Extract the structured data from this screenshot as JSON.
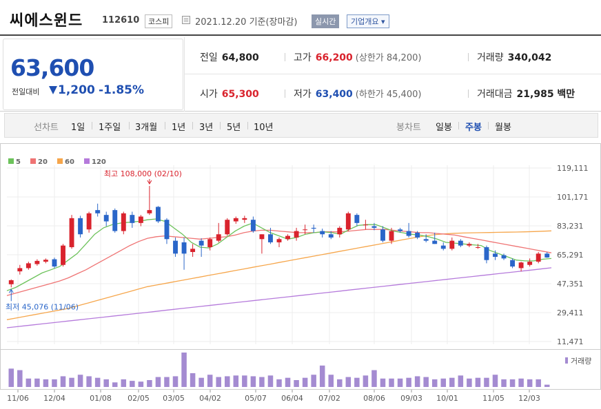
{
  "header": {
    "name": "씨에스윈드",
    "code": "112610",
    "market": "코스피",
    "date": "2021.12.20 기준(장마감)",
    "realtime": "실시간",
    "overview": "기업개요 ▾"
  },
  "summary": {
    "price": "63,600",
    "change_label": "전일대비",
    "change": "1,200",
    "change_pct": "-1.85%",
    "prev_label": "전일",
    "prev": "64,800",
    "high_label": "고가",
    "high": "66,200",
    "upper_limit": "(상한가 84,200)",
    "volume_label": "거래량",
    "volume": "340,042",
    "open_label": "시가",
    "open": "65,300",
    "low_label": "저가",
    "low": "63,400",
    "lower_limit": "(하한가 45,400)",
    "amount_label": "거래대금",
    "amount": "21,985 백만"
  },
  "period_bar": {
    "line_label": "선차트",
    "line_items": [
      "1일",
      "1주일",
      "3개월",
      "1년",
      "3년",
      "5년",
      "10년"
    ],
    "candle_label": "봉차트",
    "candle_items": [
      "일봉",
      "주봉",
      "월봉"
    ],
    "active": "주봉"
  },
  "chart_data": {
    "type": "candlestick",
    "legend": [
      "5",
      "20",
      "60",
      "120"
    ],
    "ma_colors": {
      "5": "#6cc25a",
      "20": "#ef7373",
      "60": "#f6a64b",
      "120": "#b57adb"
    },
    "up_color": "#d9232d",
    "down_color": "#2a66c9",
    "y_ticks": [
      "119,111",
      "101,171",
      "83,231",
      "65,291",
      "47,351",
      "29,411",
      "11,471"
    ],
    "ylim": [
      11471,
      119111
    ],
    "x_ticks": [
      "11/06",
      "12/04",
      "01/08",
      "02/05",
      "03/05",
      "04/02",
      "05/07",
      "06/04",
      "07/02",
      "08/06",
      "09/03",
      "10/01",
      "11/05",
      "12/03"
    ],
    "max_label": "최고 108,000 (02/10)",
    "min_label": "최저 45,076 (11/06)",
    "volume_label": "거래량",
    "candles": [
      {
        "o": 47000,
        "h": 50000,
        "l": 45076,
        "c": 49500
      },
      {
        "o": 55000,
        "h": 59000,
        "l": 53000,
        "c": 57000
      },
      {
        "o": 57000,
        "h": 61000,
        "l": 56000,
        "c": 60000
      },
      {
        "o": 59500,
        "h": 62500,
        "l": 58500,
        "c": 61500
      },
      {
        "o": 61000,
        "h": 63000,
        "l": 60000,
        "c": 62200
      },
      {
        "o": 62500,
        "h": 63500,
        "l": 57000,
        "c": 58000
      },
      {
        "o": 59000,
        "h": 72000,
        "l": 58000,
        "c": 71000
      },
      {
        "o": 70000,
        "h": 90000,
        "l": 69000,
        "c": 88000
      },
      {
        "o": 88000,
        "h": 89500,
        "l": 76000,
        "c": 78000
      },
      {
        "o": 81000,
        "h": 92000,
        "l": 79000,
        "c": 91000
      },
      {
        "o": 93000,
        "h": 97000,
        "l": 89000,
        "c": 91000
      },
      {
        "o": 90000,
        "h": 92000,
        "l": 83000,
        "c": 86000
      },
      {
        "o": 93000,
        "h": 94000,
        "l": 79000,
        "c": 80000
      },
      {
        "o": 80000,
        "h": 92000,
        "l": 78000,
        "c": 91000
      },
      {
        "o": 90000,
        "h": 92000,
        "l": 82000,
        "c": 85000
      },
      {
        "o": 85000,
        "h": 90000,
        "l": 83000,
        "c": 89000
      },
      {
        "o": 91000,
        "h": 108000,
        "l": 90000,
        "c": 93000
      },
      {
        "o": 95000,
        "h": 95500,
        "l": 85000,
        "c": 86000
      },
      {
        "o": 87000,
        "h": 88000,
        "l": 72000,
        "c": 75000
      },
      {
        "o": 74000,
        "h": 76000,
        "l": 64000,
        "c": 66000
      },
      {
        "o": 73000,
        "h": 76000,
        "l": 56000,
        "c": 66000
      },
      {
        "o": 67000,
        "h": 72000,
        "l": 64000,
        "c": 69000
      },
      {
        "o": 74000,
        "h": 75500,
        "l": 64000,
        "c": 71000
      },
      {
        "o": 70000,
        "h": 76000,
        "l": 68000,
        "c": 75000
      },
      {
        "o": 74000,
        "h": 85000,
        "l": 73000,
        "c": 78000
      },
      {
        "o": 78000,
        "h": 88000,
        "l": 77000,
        "c": 87000
      },
      {
        "o": 86000,
        "h": 89000,
        "l": 84500,
        "c": 88000
      },
      {
        "o": 87000,
        "h": 89500,
        "l": 85000,
        "c": 88000
      },
      {
        "o": 87000,
        "h": 89000,
        "l": 79000,
        "c": 80000
      },
      {
        "o": 75000,
        "h": 78000,
        "l": 66000,
        "c": 78000
      },
      {
        "o": 78000,
        "h": 82000,
        "l": 72000,
        "c": 73000
      },
      {
        "o": 73000,
        "h": 76000,
        "l": 70000,
        "c": 75000
      },
      {
        "o": 75000,
        "h": 78000,
        "l": 74000,
        "c": 77000
      },
      {
        "o": 76000,
        "h": 82000,
        "l": 74000,
        "c": 80000
      },
      {
        "o": 81000,
        "h": 84000,
        "l": 78000,
        "c": 81000
      },
      {
        "o": 82000,
        "h": 84000,
        "l": 79000,
        "c": 81500
      },
      {
        "o": 80000,
        "h": 81500,
        "l": 76000,
        "c": 78000
      },
      {
        "o": 78000,
        "h": 80000,
        "l": 75000,
        "c": 76000
      },
      {
        "o": 78000,
        "h": 83000,
        "l": 76000,
        "c": 82000
      },
      {
        "o": 81000,
        "h": 92000,
        "l": 80000,
        "c": 91000
      },
      {
        "o": 90000,
        "h": 91000,
        "l": 83000,
        "c": 85000
      },
      {
        "o": 84000,
        "h": 87000,
        "l": 81000,
        "c": 84000
      },
      {
        "o": 83000,
        "h": 85000,
        "l": 80500,
        "c": 82000
      },
      {
        "o": 81000,
        "h": 83000,
        "l": 73000,
        "c": 74000
      },
      {
        "o": 74000,
        "h": 82000,
        "l": 72000,
        "c": 80000
      },
      {
        "o": 81000,
        "h": 82000,
        "l": 79000,
        "c": 80000
      },
      {
        "o": 80000,
        "h": 85000,
        "l": 76000,
        "c": 77000
      },
      {
        "o": 79000,
        "h": 80000,
        "l": 75000,
        "c": 76000
      },
      {
        "o": 75000,
        "h": 78000,
        "l": 73000,
        "c": 74000
      },
      {
        "o": 74000,
        "h": 79000,
        "l": 72000,
        "c": 72000
      },
      {
        "o": 71000,
        "h": 73000,
        "l": 68000,
        "c": 69000
      },
      {
        "o": 69000,
        "h": 76000,
        "l": 68000,
        "c": 74000
      },
      {
        "o": 74000,
        "h": 75000,
        "l": 70000,
        "c": 71000
      },
      {
        "o": 71000,
        "h": 73000,
        "l": 70000,
        "c": 72000
      },
      {
        "o": 70000,
        "h": 72000,
        "l": 69000,
        "c": 70000
      },
      {
        "o": 70000,
        "h": 71000,
        "l": 60000,
        "c": 62000
      },
      {
        "o": 66000,
        "h": 68000,
        "l": 62000,
        "c": 64000
      },
      {
        "o": 65000,
        "h": 66000,
        "l": 62000,
        "c": 63000
      },
      {
        "o": 62000,
        "h": 63000,
        "l": 57000,
        "c": 58000
      },
      {
        "o": 57000,
        "h": 61000,
        "l": 55000,
        "c": 60500
      },
      {
        "o": 59000,
        "h": 63000,
        "l": 58000,
        "c": 61000
      },
      {
        "o": 61000,
        "h": 67000,
        "l": 60000,
        "c": 66000
      },
      {
        "o": 66000,
        "h": 67000,
        "l": 63400,
        "c": 63600
      }
    ],
    "ma5": [
      43000,
      45000,
      48000,
      51000,
      54000,
      56000,
      58000,
      62000,
      66000,
      72000,
      78000,
      82000,
      84000,
      85000,
      85500,
      86000,
      87000,
      87500,
      86000,
      82000,
      78000,
      73000,
      70000,
      69500,
      72000,
      76000,
      80000,
      83000,
      85000,
      82000,
      79000,
      77000,
      75000,
      76000,
      78000,
      79000,
      79500,
      79000,
      78000,
      81000,
      83500,
      84000,
      84000,
      82000,
      80000,
      79000,
      78000,
      77500,
      76500,
      75000,
      73000,
      72500,
      72000,
      71500,
      71000,
      68000,
      66000,
      64000,
      62000,
      61500,
      61500,
      62500,
      63000
    ],
    "ma20": [
      40000,
      41500,
      43000,
      44500,
      46000,
      47500,
      49000,
      51000,
      53500,
      56000,
      59000,
      62000,
      65000,
      68000,
      71000,
      73500,
      75500,
      76500,
      77000,
      76500,
      76000,
      75500,
      75000,
      75500,
      76000,
      76500,
      77500,
      79000,
      80000,
      80500,
      80500,
      80000,
      79500,
      79000,
      79000,
      79000,
      79500,
      79500,
      79500,
      80000,
      80500,
      81000,
      81000,
      81000,
      80500,
      80000,
      79500,
      79000,
      79000,
      78500,
      78000,
      77500,
      76500,
      75500,
      74500,
      73500,
      72500,
      71500,
      70500,
      69500,
      68500,
      67500,
      66500
    ],
    "ma60": [
      25000,
      26000,
      27000,
      28000,
      29000,
      30000,
      31000,
      32000,
      33500,
      35000,
      36500,
      38000,
      39500,
      41000,
      42500,
      44000,
      45500,
      46500,
      47500,
      48500,
      49500,
      50500,
      51500,
      52500,
      53500,
      54500,
      55500,
      56500,
      57500,
      58500,
      59500,
      60500,
      61500,
      62500,
      63500,
      64500,
      65500,
      66500,
      67500,
      68500,
      69500,
      70500,
      71500,
      72500,
      73500,
      74500,
      75500,
      76500,
      77300,
      77900,
      78300,
      78600,
      78800,
      78900,
      79000,
      79100,
      79200,
      79300,
      79400,
      79500,
      79700,
      79900,
      80100
    ],
    "ma120": [
      20000,
      20600,
      21200,
      21800,
      22400,
      23000,
      23600,
      24200,
      24800,
      25400,
      26000,
      26600,
      27200,
      27800,
      28400,
      29000,
      29600,
      30200,
      30800,
      31400,
      32000,
      32600,
      33200,
      33800,
      34400,
      35000,
      35600,
      36200,
      36800,
      37400,
      38000,
      38600,
      39200,
      39800,
      40400,
      41000,
      41600,
      42200,
      42800,
      43400,
      44000,
      44600,
      45200,
      45800,
      46400,
      47000,
      47600,
      48200,
      48800,
      49400,
      50000,
      50600,
      51200,
      51800,
      52400,
      53000,
      53600,
      54200,
      54800,
      55400,
      56000,
      56600,
      57200
    ],
    "volume": [
      24,
      22,
      11,
      11,
      10,
      10,
      14,
      12,
      16,
      14,
      12,
      10,
      6,
      10,
      8,
      7,
      9,
      13,
      13,
      14,
      45,
      18,
      12,
      16,
      13,
      14,
      15,
      15,
      14,
      13,
      15,
      10,
      12,
      9,
      12,
      16,
      28,
      16,
      10,
      13,
      12,
      15,
      22,
      11,
      11,
      11,
      12,
      14,
      13,
      10,
      11,
      12,
      15,
      11,
      12,
      12,
      16,
      10,
      10,
      11,
      10,
      10,
      3
    ]
  }
}
